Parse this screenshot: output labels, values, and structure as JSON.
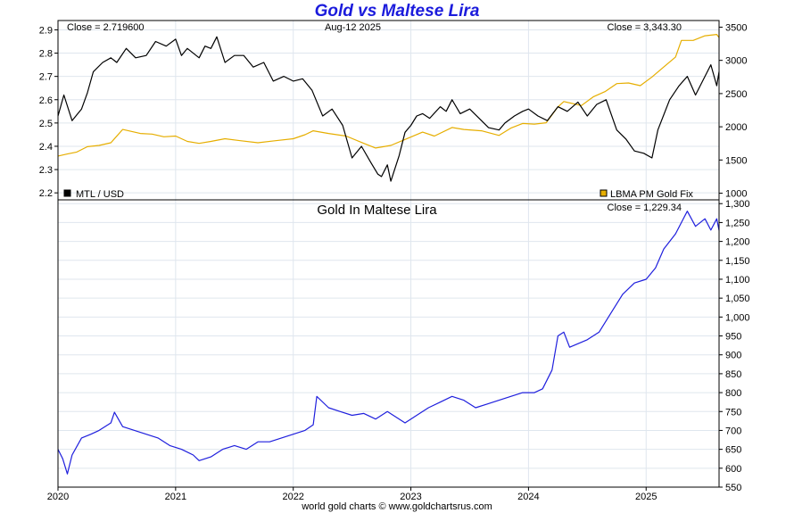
{
  "title": "Gold vs Maltese Lira",
  "date_label": "Aug-12  2025",
  "footer": "world gold charts © www.goldchartsrus.com",
  "colors": {
    "title": "#1b1bdc",
    "mtl": "#000000",
    "gold": "#e6ae00",
    "gold_mtl": "#1f1fdd",
    "grid": "#dfe6ee"
  },
  "chart_data": [
    {
      "type": "line",
      "panel": "top",
      "x_ticks": [
        "2020",
        "2021",
        "2022",
        "2023",
        "2024",
        "2025"
      ],
      "x_range": [
        2020.0,
        2025.62
      ],
      "y_left": {
        "ticks": [
          "2.2",
          "2.3",
          "2.4",
          "2.5",
          "2.6",
          "2.7",
          "2.8",
          "2.9"
        ],
        "range": [
          2.17,
          2.94
        ]
      },
      "y_right": {
        "ticks": [
          "1000",
          "1500",
          "2000",
          "2500",
          "3000",
          "3500"
        ],
        "range": [
          900,
          3600
        ]
      },
      "close_left": "Close = 2.719600",
      "close_right": "Close = 3,343.30",
      "legend_position": "bottom",
      "grid": true,
      "series": [
        {
          "name": "MTL / USD",
          "axis": "left",
          "color": "#000000",
          "x": [
            2020.0,
            2020.05,
            2020.12,
            2020.2,
            2020.25,
            2020.3,
            2020.38,
            2020.45,
            2020.5,
            2020.58,
            2020.66,
            2020.75,
            2020.83,
            2020.92,
            2021.0,
            2021.05,
            2021.1,
            2021.2,
            2021.25,
            2021.3,
            2021.35,
            2021.42,
            2021.5,
            2021.58,
            2021.66,
            2021.75,
            2021.83,
            2021.92,
            2022.0,
            2022.08,
            2022.16,
            2022.25,
            2022.33,
            2022.42,
            2022.5,
            2022.58,
            2022.66,
            2022.72,
            2022.75,
            2022.8,
            2022.83,
            2022.9,
            2022.95,
            2023.0,
            2023.05,
            2023.1,
            2023.16,
            2023.25,
            2023.3,
            2023.35,
            2023.42,
            2023.5,
            2023.58,
            2023.66,
            2023.75,
            2023.8,
            2023.88,
            2023.95,
            2024.0,
            2024.08,
            2024.16,
            2024.25,
            2024.33,
            2024.42,
            2024.5,
            2024.58,
            2024.66,
            2024.75,
            2024.83,
            2024.9,
            2024.98,
            2025.05,
            2025.1,
            2025.2,
            2025.28,
            2025.35,
            2025.42,
            2025.5,
            2025.55,
            2025.6,
            2025.62
          ],
          "y": [
            2.53,
            2.62,
            2.51,
            2.56,
            2.63,
            2.72,
            2.76,
            2.78,
            2.76,
            2.82,
            2.78,
            2.79,
            2.85,
            2.83,
            2.86,
            2.79,
            2.82,
            2.78,
            2.83,
            2.82,
            2.87,
            2.76,
            2.79,
            2.79,
            2.74,
            2.76,
            2.68,
            2.7,
            2.68,
            2.69,
            2.64,
            2.53,
            2.56,
            2.49,
            2.35,
            2.4,
            2.33,
            2.28,
            2.27,
            2.32,
            2.25,
            2.36,
            2.46,
            2.49,
            2.53,
            2.54,
            2.52,
            2.57,
            2.55,
            2.6,
            2.54,
            2.56,
            2.52,
            2.48,
            2.47,
            2.5,
            2.53,
            2.55,
            2.56,
            2.53,
            2.51,
            2.57,
            2.55,
            2.59,
            2.53,
            2.58,
            2.6,
            2.47,
            2.43,
            2.38,
            2.37,
            2.35,
            2.47,
            2.6,
            2.66,
            2.7,
            2.62,
            2.7,
            2.75,
            2.66,
            2.72
          ]
        },
        {
          "name": "LBMA PM Gold Fix",
          "axis": "right",
          "color": "#e6ae00",
          "x": [
            2020.0,
            2020.08,
            2020.16,
            2020.25,
            2020.35,
            2020.45,
            2020.55,
            2020.6,
            2020.7,
            2020.8,
            2020.9,
            2021.0,
            2021.1,
            2021.2,
            2021.3,
            2021.42,
            2021.55,
            2021.7,
            2021.85,
            2022.0,
            2022.1,
            2022.17,
            2022.3,
            2022.45,
            2022.6,
            2022.7,
            2022.83,
            2022.95,
            2023.1,
            2023.2,
            2023.35,
            2023.45,
            2023.6,
            2023.75,
            2023.85,
            2023.95,
            2024.05,
            2024.15,
            2024.25,
            2024.3,
            2024.45,
            2024.55,
            2024.65,
            2024.75,
            2024.85,
            2024.95,
            2025.05,
            2025.15,
            2025.25,
            2025.3,
            2025.4,
            2025.5,
            2025.6,
            2025.62
          ],
          "y": [
            1560,
            1590,
            1620,
            1700,
            1720,
            1760,
            1960,
            1940,
            1900,
            1890,
            1850,
            1860,
            1780,
            1750,
            1780,
            1820,
            1790,
            1760,
            1790,
            1820,
            1880,
            1940,
            1900,
            1860,
            1750,
            1680,
            1720,
            1810,
            1920,
            1860,
            1990,
            1960,
            1940,
            1870,
            1980,
            2050,
            2040,
            2060,
            2300,
            2380,
            2320,
            2450,
            2530,
            2650,
            2660,
            2620,
            2750,
            2900,
            3050,
            3300,
            3300,
            3370,
            3390,
            3343
          ]
        }
      ]
    },
    {
      "type": "line",
      "panel": "bottom",
      "title": "Gold In Maltese Lira",
      "close_label": "Close = 1,229.34",
      "x_ticks": [
        "2020",
        "2021",
        "2022",
        "2023",
        "2024",
        "2025"
      ],
      "x_range": [
        2020.0,
        2025.62
      ],
      "y_right": {
        "ticks": [
          "550",
          "600",
          "650",
          "700",
          "750",
          "800",
          "850",
          "900",
          "950",
          "1,000",
          "1,050",
          "1,100",
          "1,150",
          "1,200",
          "1,250",
          "1,300"
        ],
        "range": [
          550,
          1310
        ]
      },
      "grid": true,
      "series": [
        {
          "color": "#1f1fdd",
          "x": [
            2020.0,
            2020.04,
            2020.08,
            2020.12,
            2020.2,
            2020.28,
            2020.35,
            2020.45,
            2020.48,
            2020.55,
            2020.65,
            2020.75,
            2020.85,
            2020.95,
            2021.05,
            2021.15,
            2021.2,
            2021.3,
            2021.4,
            2021.5,
            2021.6,
            2021.7,
            2021.8,
            2021.9,
            2022.0,
            2022.1,
            2022.17,
            2022.2,
            2022.3,
            2022.4,
            2022.5,
            2022.6,
            2022.7,
            2022.8,
            2022.95,
            2023.05,
            2023.15,
            2023.25,
            2023.35,
            2023.45,
            2023.55,
            2023.65,
            2023.75,
            2023.85,
            2023.95,
            2024.05,
            2024.12,
            2024.2,
            2024.25,
            2024.3,
            2024.35,
            2024.5,
            2024.6,
            2024.7,
            2024.8,
            2024.9,
            2025.0,
            2025.08,
            2025.15,
            2025.25,
            2025.3,
            2025.35,
            2025.42,
            2025.5,
            2025.55,
            2025.6,
            2025.62
          ],
          "y": [
            650,
            625,
            585,
            635,
            680,
            690,
            700,
            720,
            748,
            710,
            700,
            690,
            680,
            660,
            650,
            635,
            620,
            630,
            650,
            660,
            650,
            670,
            670,
            680,
            690,
            700,
            715,
            790,
            760,
            750,
            740,
            745,
            730,
            750,
            720,
            740,
            760,
            775,
            790,
            780,
            760,
            770,
            780,
            790,
            800,
            800,
            810,
            860,
            950,
            960,
            920,
            940,
            960,
            1010,
            1060,
            1090,
            1100,
            1130,
            1180,
            1220,
            1250,
            1280,
            1240,
            1260,
            1230,
            1260,
            1229
          ]
        }
      ]
    }
  ]
}
